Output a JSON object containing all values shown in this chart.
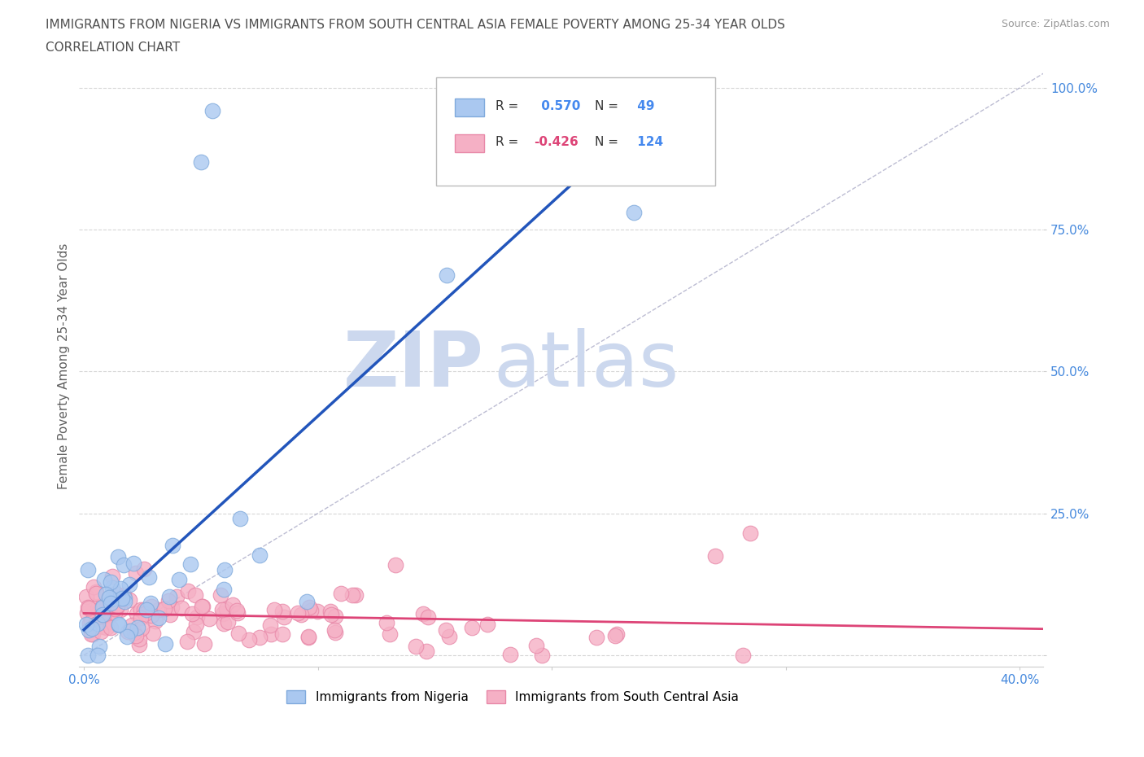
{
  "title_line1": "IMMIGRANTS FROM NIGERIA VS IMMIGRANTS FROM SOUTH CENTRAL ASIA FEMALE POVERTY AMONG 25-34 YEAR OLDS",
  "title_line2": "CORRELATION CHART",
  "source_text": "Source: ZipAtlas.com",
  "ylabel": "Female Poverty Among 25-34 Year Olds",
  "xlim": [
    -0.002,
    0.41
  ],
  "ylim": [
    -0.02,
    1.04
  ],
  "xtick_positions": [
    0.0,
    0.1,
    0.2,
    0.3,
    0.4
  ],
  "xtick_labels_show": [
    "0.0%",
    "",
    "",
    "",
    "40.0%"
  ],
  "ytick_positions": [
    0.0,
    0.25,
    0.5,
    0.75,
    1.0
  ],
  "ytick_labels": [
    "",
    "25.0%",
    "50.0%",
    "75.0%",
    "100.0%"
  ],
  "nigeria_color": "#aac8f0",
  "nigeria_edge_color": "#80aadc",
  "sca_color": "#f5b0c5",
  "sca_edge_color": "#e888a8",
  "nigeria_R": 0.57,
  "nigeria_N": 49,
  "sca_R": -0.426,
  "sca_N": 124,
  "nigeria_line_color": "#2255bb",
  "sca_line_color": "#dd4477",
  "ref_line_color": "#9999bb",
  "watermark_zip": "ZIP",
  "watermark_atlas": "atlas",
  "watermark_color": "#ccd8ee",
  "legend_label_nigeria": "Immigrants from Nigeria",
  "legend_label_sca": "Immigrants from South Central Asia",
  "background_color": "#ffffff",
  "grid_color": "#cccccc",
  "title_color": "#505050",
  "axis_label_color": "#606060",
  "tick_label_color_y": "#4488dd",
  "tick_label_color_x": "#888888"
}
